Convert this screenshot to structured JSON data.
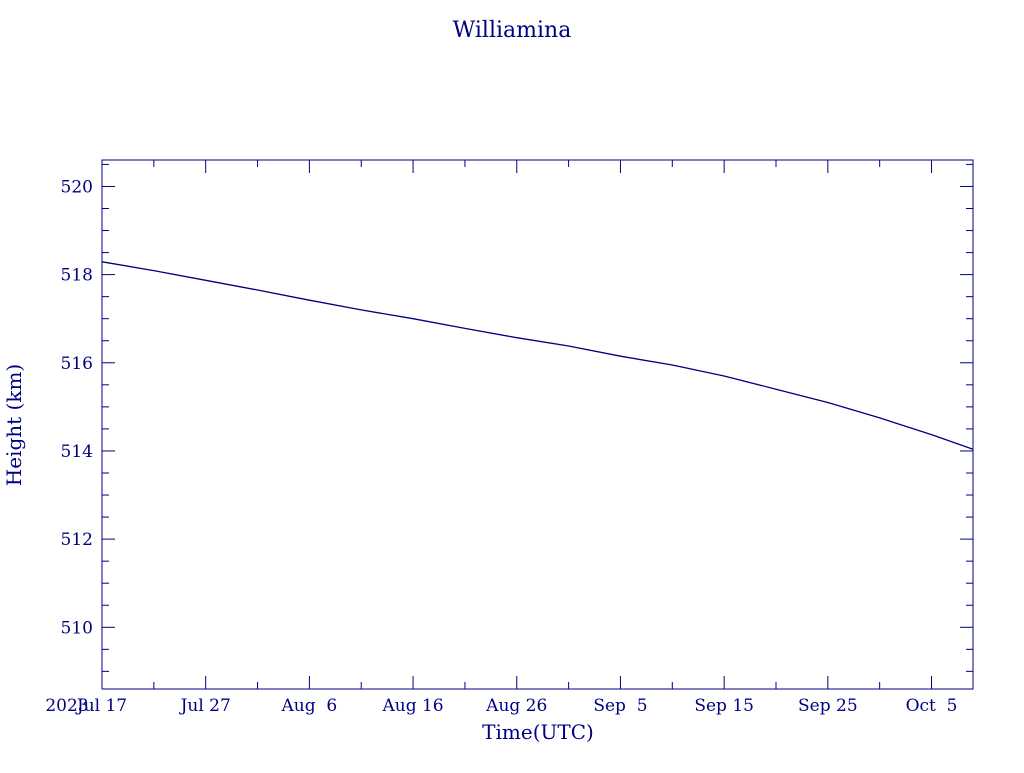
{
  "chart_data": {
    "type": "line",
    "title": "Williamina",
    "xlabel": "Time(UTC)",
    "ylabel": "Height (km)",
    "year_label": "2023",
    "xlim": [
      "2023-07-17",
      "2023-10-09"
    ],
    "ylim": [
      508.6,
      520.6
    ],
    "x_ticks": [
      {
        "date": "2023-07-17",
        "label": "Jul 17"
      },
      {
        "date": "2023-07-27",
        "label": "Jul 27"
      },
      {
        "date": "2023-08-06",
        "label": "Aug  6"
      },
      {
        "date": "2023-08-16",
        "label": "Aug 16"
      },
      {
        "date": "2023-08-26",
        "label": "Aug 26"
      },
      {
        "date": "2023-09-05",
        "label": "Sep  5"
      },
      {
        "date": "2023-09-15",
        "label": "Sep 15"
      },
      {
        "date": "2023-09-25",
        "label": "Sep 25"
      },
      {
        "date": "2023-10-05",
        "label": "Oct  5"
      }
    ],
    "y_ticks": [
      510,
      512,
      514,
      516,
      518,
      520
    ],
    "y_tick_labels": [
      "510",
      "512",
      "514",
      "516",
      "518",
      "520"
    ],
    "grid": false,
    "color": "#000080",
    "series": [
      {
        "x": [
          "2023-07-17",
          "2023-07-22",
          "2023-07-27",
          "2023-08-01",
          "2023-08-06",
          "2023-08-11",
          "2023-08-16",
          "2023-08-21",
          "2023-08-26",
          "2023-08-31",
          "2023-09-05",
          "2023-09-10",
          "2023-09-15",
          "2023-09-20",
          "2023-09-25",
          "2023-09-30",
          "2023-10-05",
          "2023-10-09"
        ],
        "y": [
          518.29,
          518.09,
          517.87,
          517.65,
          517.42,
          517.2,
          517.0,
          516.78,
          516.57,
          516.38,
          516.15,
          515.95,
          515.7,
          515.4,
          515.1,
          514.75,
          514.37,
          514.04
        ]
      }
    ]
  }
}
